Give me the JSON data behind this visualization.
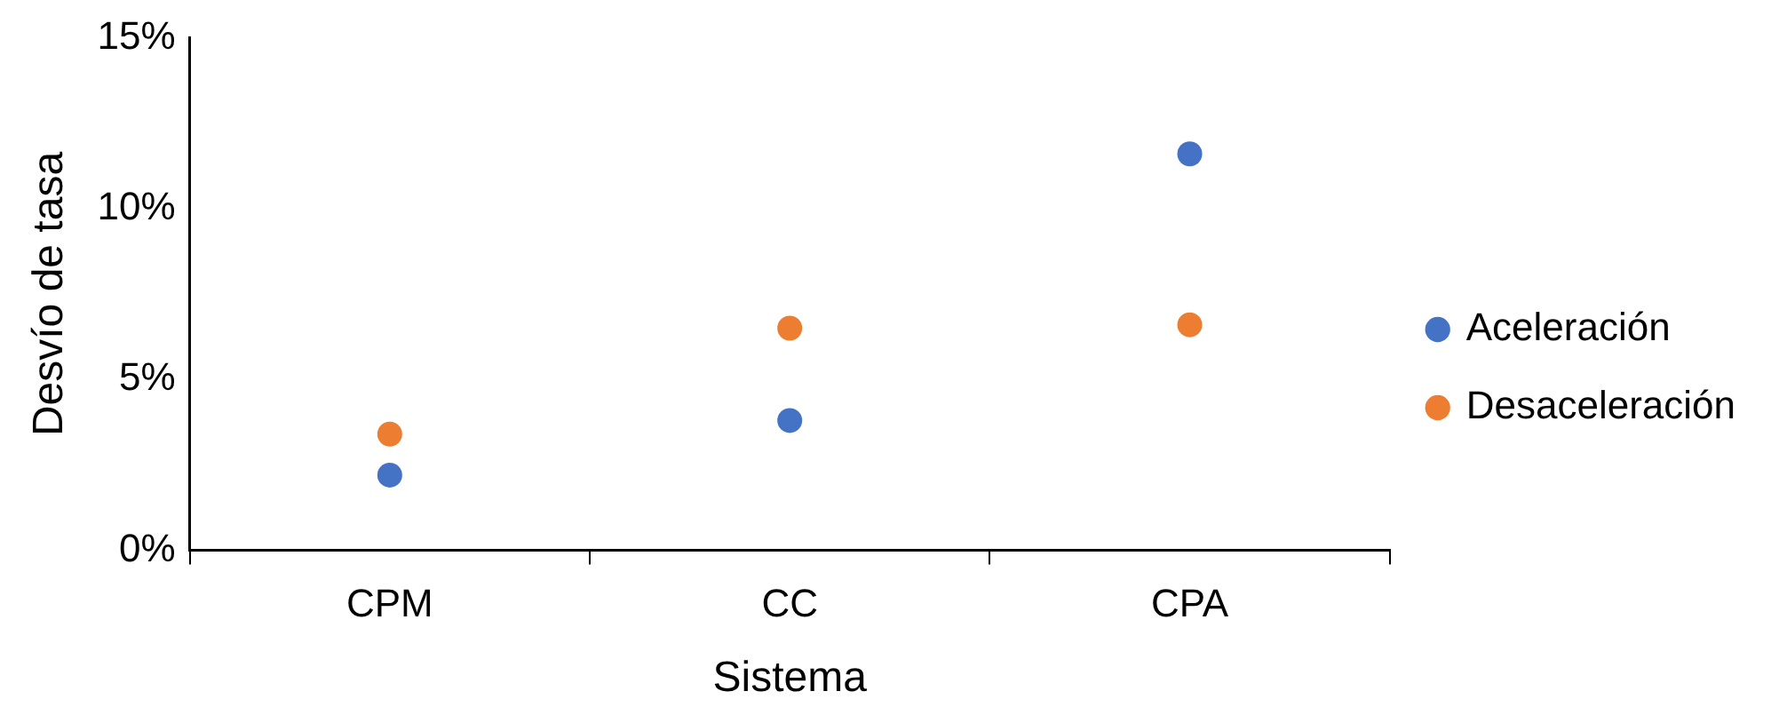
{
  "chart_data": {
    "type": "scatter",
    "xlabel": "Sistema",
    "ylabel": "Desvío de tasa",
    "categories": [
      "CPM",
      "CC",
      "CPA"
    ],
    "series": [
      {
        "name": "Aceleración",
        "color": "#4472c4",
        "x": [
          "CPM",
          "CC",
          "CPA"
        ],
        "values": [
          2.2,
          3.8,
          11.6
        ]
      },
      {
        "name": "Desaceleración",
        "color": "#ed7d31",
        "x": [
          "CPM",
          "CC",
          "CPA"
        ],
        "values": [
          3.4,
          6.5,
          6.6
        ]
      }
    ],
    "ylim": [
      0,
      15
    ],
    "yticks": [
      {
        "value": 0,
        "label": "0%"
      },
      {
        "value": 5,
        "label": "5%"
      },
      {
        "value": 10,
        "label": "10%"
      },
      {
        "value": 15,
        "label": "15%"
      }
    ],
    "grid": false,
    "legend": "right",
    "marker": "circle"
  }
}
